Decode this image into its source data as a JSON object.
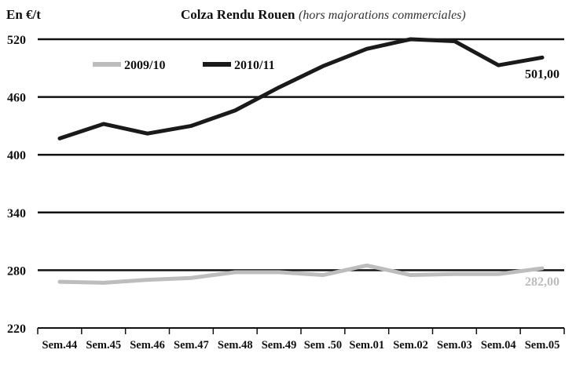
{
  "chart_data": {
    "type": "line",
    "title": "Colza Rendu Rouen",
    "subtitle": "(hors majorations commerciales)",
    "ylabel": "En €/t",
    "xlabel": "",
    "categories": [
      "Sem.44",
      "Sem.45",
      "Sem.46",
      "Sem.47",
      "Sem.48",
      "Sem.49",
      "Sem .50",
      "Sem.01",
      "Sem.02",
      "Sem.03",
      "Sem.04",
      "Sem.05"
    ],
    "ylim": [
      220,
      520
    ],
    "yticks": [
      "520",
      "460",
      "400",
      "340",
      "280",
      "220"
    ],
    "grid": true,
    "legend_position": "top-left",
    "series": [
      {
        "name": "2009/10",
        "color": "#bdbdbd",
        "values": [
          268,
          267,
          270,
          272,
          278,
          278,
          275,
          285,
          275,
          276,
          276,
          282
        ],
        "end_label": "282,00"
      },
      {
        "name": "2010/11",
        "color": "#1a1a1a",
        "values": [
          417,
          432,
          422,
          430,
          446,
          470,
          492,
          510,
          520,
          518,
          493,
          501
        ],
        "end_label": "501,00"
      }
    ]
  }
}
